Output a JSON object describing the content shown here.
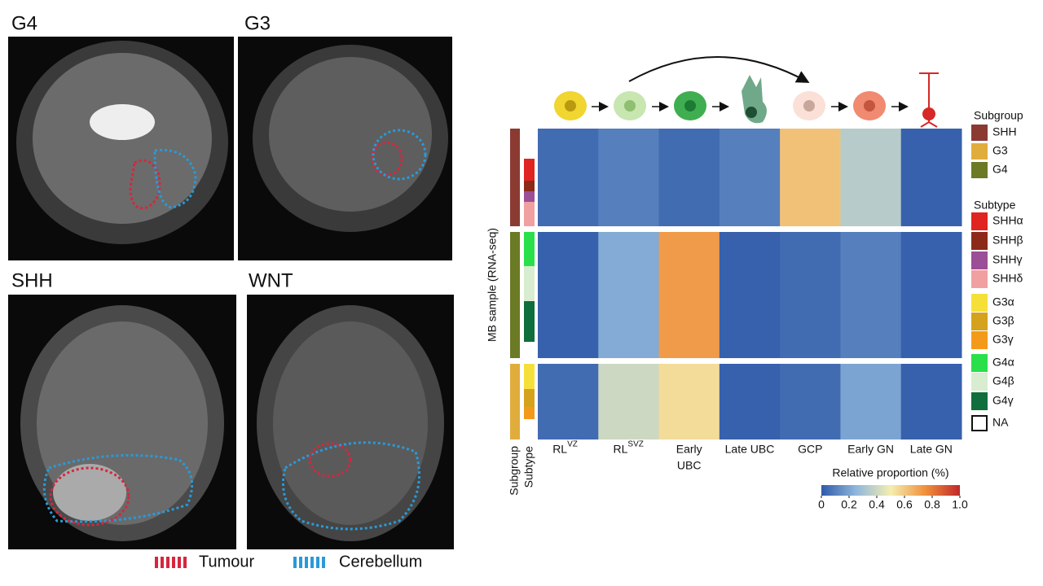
{
  "panels": [
    {
      "label": "G4"
    },
    {
      "label": "G3"
    },
    {
      "label": "SHH"
    },
    {
      "label": "WNT"
    }
  ],
  "mri_legend": [
    "Tumour",
    "Cerebellum"
  ],
  "chart_data": {
    "type": "heatmap",
    "y_label": "MB sample (RNA-seq)",
    "track_labels": [
      "Subgroup",
      "Subtype"
    ],
    "columns": [
      {
        "lines": [
          "RL"
        ],
        "sup": "VZ"
      },
      {
        "lines": [
          "RL"
        ],
        "sup": "SVZ"
      },
      {
        "lines": [
          "Early",
          "UBC"
        ]
      },
      {
        "lines": [
          "Late UBC"
        ]
      },
      {
        "lines": [
          "GCP"
        ]
      },
      {
        "lines": [
          "Early GN"
        ]
      },
      {
        "lines": [
          "Late GN"
        ]
      }
    ],
    "values": [
      [
        0.05,
        0.1,
        0.05,
        0.1,
        0.62,
        0.35,
        0.02
      ],
      [
        0.02,
        0.22,
        0.72,
        0.02,
        0.05,
        0.1,
        0.02
      ],
      [
        0.05,
        0.4,
        0.55,
        0.02,
        0.05,
        0.2,
        0.02
      ]
    ],
    "colorbar": {
      "title": "Relative proportion (%)",
      "lim": [
        0,
        1
      ],
      "ticks": [
        0,
        0.2,
        0.4,
        0.6,
        0.8,
        {
          "value": 1,
          "label": "1.0"
        }
      ]
    },
    "subgroup_legend": {
      "title": "Subgroup",
      "items": [
        {
          "name": "SHH",
          "color": "#8b3a32"
        },
        {
          "name": "G3",
          "color": "#e0ad3c"
        },
        {
          "name": "G4",
          "color": "#6b7a24"
        }
      ]
    },
    "subtype_legend": {
      "title": "Subtype",
      "items": [
        {
          "name": "SHHα",
          "color": "#e0241f"
        },
        {
          "name": "SHHβ",
          "color": "#8c2a1a"
        },
        {
          "name": "SHHγ",
          "color": "#9b4f96"
        },
        {
          "name": "SHHδ",
          "color": "#f0a0a0"
        },
        {
          "name": "G3α",
          "color": "#f5e03a"
        },
        {
          "name": "G3β",
          "color": "#d4a21c"
        },
        {
          "name": "G3γ",
          "color": "#f39a1a"
        },
        {
          "name": "G4α",
          "color": "#29e04a"
        },
        {
          "name": "G4β",
          "color": "#d8ecd0"
        },
        {
          "name": "G4γ",
          "color": "#0e6e3c"
        }
      ]
    },
    "na_label": "NA"
  }
}
